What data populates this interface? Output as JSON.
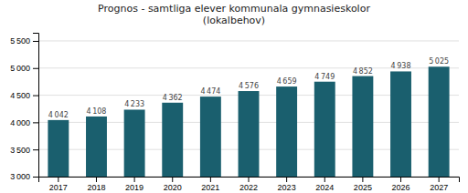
{
  "chart_data": {
    "type": "bar",
    "title": "Prognos - samtliga elever kommunala gymnasieskolor\n(lokalbehov)",
    "categories": [
      "2017",
      "2018",
      "2019",
      "2020",
      "2021",
      "2022",
      "2023",
      "2024",
      "2025",
      "2026",
      "2027"
    ],
    "values": [
      4042,
      4108,
      4233,
      4362,
      4474,
      4576,
      4659,
      4749,
      4852,
      4938,
      5025
    ],
    "value_labels": [
      "4 042",
      "4 108",
      "4 233",
      "4 362",
      "4 474",
      "4 576",
      "4 659",
      "4 749",
      "4 852",
      "4 938",
      "5 025"
    ],
    "data_labels": true,
    "color": "#1a5f6e",
    "ylim": [
      3000,
      5650
    ],
    "yticks": [
      {
        "value": 3000,
        "label": "3 000"
      },
      {
        "value": 3500,
        "label": "3 500"
      },
      {
        "value": 4000,
        "label": "4 000"
      },
      {
        "value": 4500,
        "label": "4 500"
      },
      {
        "value": 5000,
        "label": "5 000"
      },
      {
        "value": 5500,
        "label": "5 500"
      }
    ],
    "grid": true
  }
}
